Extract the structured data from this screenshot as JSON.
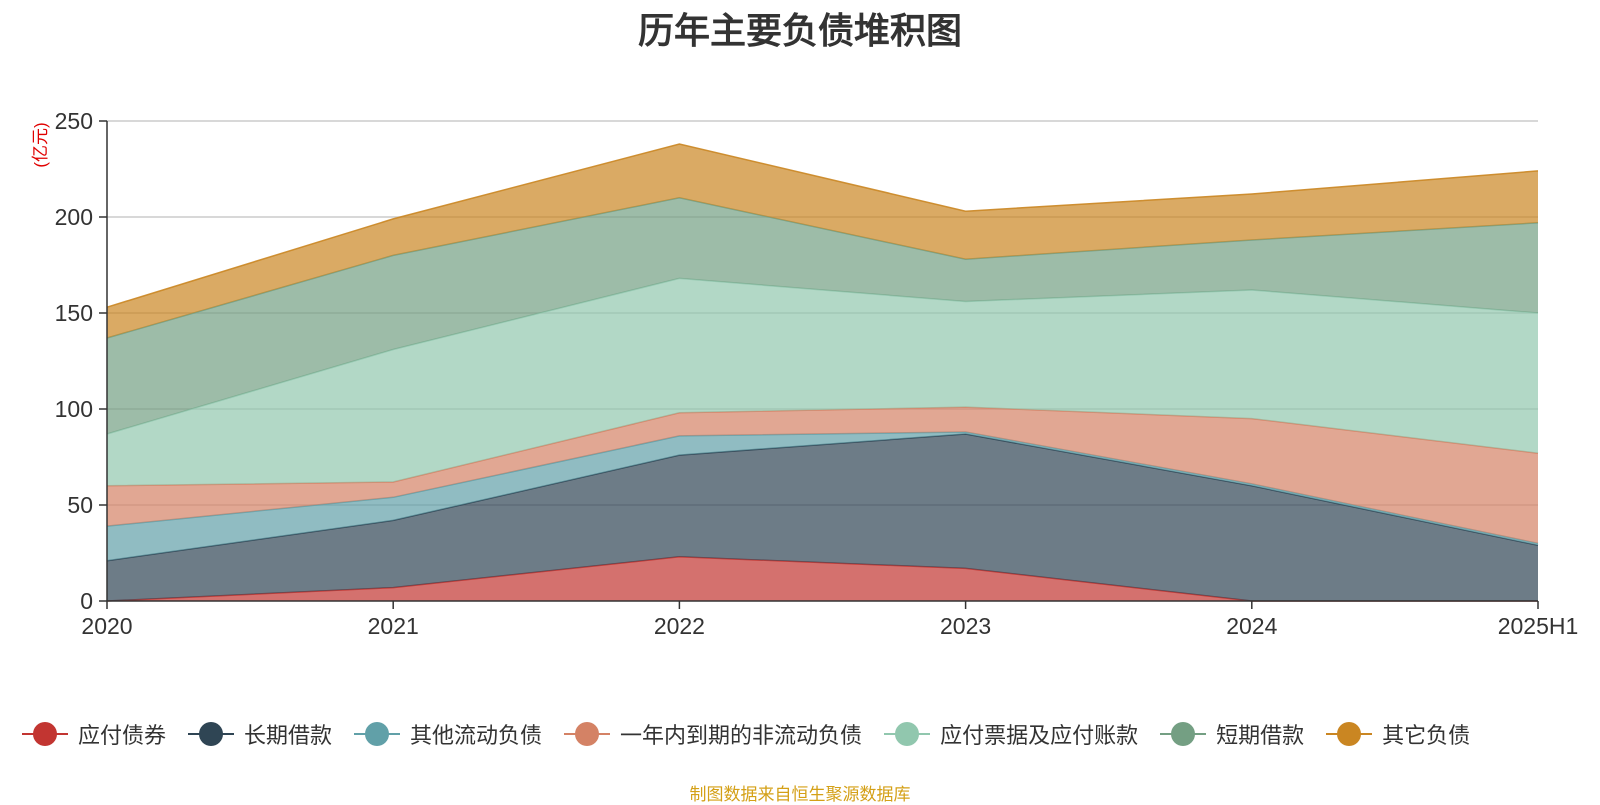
{
  "chart_data": {
    "type": "area",
    "stacked": true,
    "title": "历年主要负债堆积图",
    "ylabel": "(亿元)",
    "ylim": [
      0,
      250
    ],
    "yticks": [
      0,
      50,
      100,
      150,
      200,
      250
    ],
    "x": [
      "2020",
      "2021",
      "2022",
      "2023",
      "2024",
      "2025H1"
    ],
    "grid": true,
    "legend": "bottom",
    "series": [
      {
        "name": "应付债券",
        "color": "#c23531",
        "values": [
          0,
          7,
          23,
          17,
          0,
          0
        ]
      },
      {
        "name": "长期借款",
        "color": "#2f4554",
        "values": [
          21,
          35,
          53,
          70,
          60,
          29
        ]
      },
      {
        "name": "其他流动负债",
        "color": "#61a0a8",
        "values": [
          18,
          12,
          10,
          1,
          1,
          1
        ]
      },
      {
        "name": "一年内到期的非流动负债",
        "color": "#d48265",
        "values": [
          21,
          8,
          12,
          13,
          34,
          47
        ]
      },
      {
        "name": "应付票据及应付账款",
        "color": "#91c7ae",
        "values": [
          27,
          69,
          70,
          55,
          67,
          73
        ]
      },
      {
        "name": "短期借款",
        "color": "#749f83",
        "values": [
          50,
          49,
          42,
          22,
          26,
          47
        ]
      },
      {
        "name": "其它负债",
        "color": "#ca8622",
        "values": [
          16,
          19,
          28,
          25,
          24,
          27
        ]
      }
    ]
  },
  "footer": {
    "source": "制图数据来自恒生聚源数据库"
  }
}
